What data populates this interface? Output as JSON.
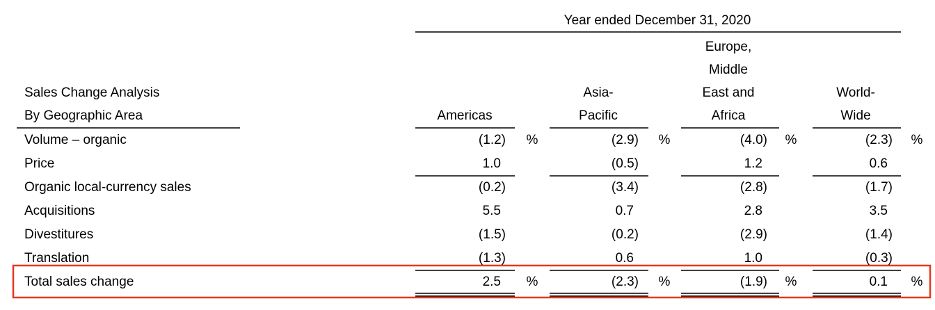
{
  "table": {
    "period": "Year ended December 31, 2020",
    "row_header": [
      "Sales Change Analysis",
      "By Geographic Area"
    ],
    "columns": [
      [
        "Americas"
      ],
      [
        "Asia-",
        "Pacific"
      ],
      [
        "Europe,",
        "Middle",
        "East and",
        "Africa"
      ],
      [
        "World-",
        "Wide"
      ]
    ],
    "rows": [
      {
        "label": "Volume – organic",
        "cells": [
          "(1.2)",
          "(2.9)",
          "(4.0)",
          "(2.3)"
        ],
        "units": [
          "%",
          "%",
          "%",
          "%"
        ]
      },
      {
        "label": "Price",
        "cells": [
          "1.0",
          "(0.5)",
          "1.2",
          "0.6"
        ]
      },
      {
        "label": "Organic local-currency sales",
        "cells": [
          "(0.2)",
          "(3.4)",
          "(2.8)",
          "(1.7)"
        ]
      },
      {
        "label": "Acquisitions",
        "cells": [
          "5.5",
          "0.7",
          "2.8",
          "3.5"
        ]
      },
      {
        "label": "Divestitures",
        "cells": [
          "(1.5)",
          "(0.2)",
          "(2.9)",
          "(1.4)"
        ]
      },
      {
        "label": "Translation",
        "cells": [
          "(1.3)",
          "0.6",
          "1.0",
          "(0.3)"
        ]
      },
      {
        "label": "Total sales change",
        "cells": [
          "2.5",
          "(2.3)",
          "(1.9)",
          "0.1"
        ],
        "units": [
          "%",
          "%",
          "%",
          "%"
        ]
      }
    ]
  }
}
